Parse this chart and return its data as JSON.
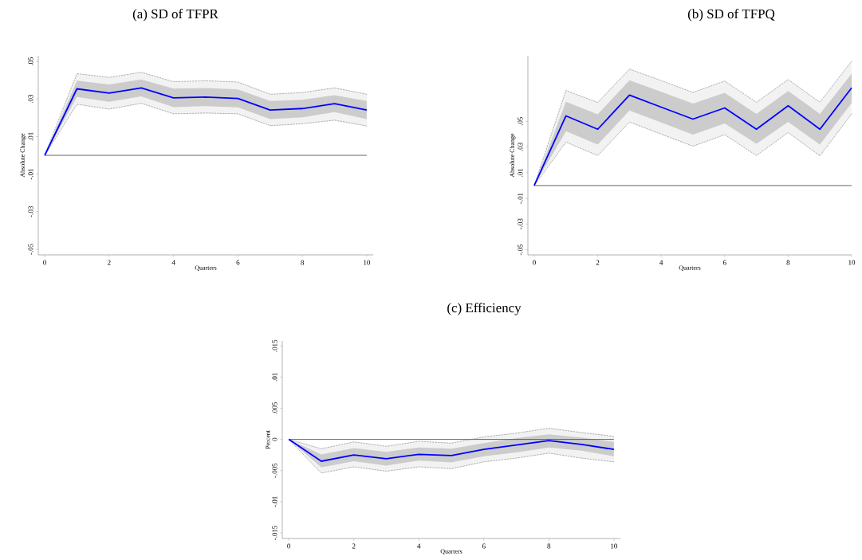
{
  "chart_data": [
    {
      "type": "line",
      "title": "(a) SD of TFPR",
      "xlabel": "Quarters",
      "ylabel": "Absolute Change",
      "x": [
        0,
        1,
        2,
        3,
        4,
        5,
        6,
        7,
        8,
        9,
        10
      ],
      "series": [
        {
          "color": "#0000ff",
          "values": [
            0,
            0.0354,
            0.0331,
            0.0359,
            0.0306,
            0.031,
            0.0303,
            0.0241,
            0.0249,
            0.0275,
            0.0241
          ],
          "lower": [
            0,
            0.0311,
            0.0285,
            0.0314,
            0.0257,
            0.0262,
            0.0255,
            0.0193,
            0.0202,
            0.023,
            0.0193
          ],
          "upper": [
            0,
            0.0397,
            0.0377,
            0.0404,
            0.0355,
            0.0358,
            0.0351,
            0.0289,
            0.0296,
            0.032,
            0.0289
          ]
        },
        {
          "color": "#808080",
          "line_style": "dashed",
          "values": [
            0,
            0.0435,
            0.0415,
            0.0442,
            0.0392,
            0.0397,
            0.039,
            0.0325,
            0.0334,
            0.0359,
            0.0325
          ],
          "lower": [
            0,
            0.0272,
            0.0246,
            0.0277,
            0.0221,
            0.0225,
            0.0221,
            0.0158,
            0.0168,
            0.0187,
            0.0156
          ],
          "upper": [
            0,
            0.0435,
            0.0415,
            0.0442,
            0.0392,
            0.0397,
            0.039,
            0.0325,
            0.0334,
            0.0359,
            0.0325
          ]
        },
        {
          "color": "#808080",
          "line_style": "dashed",
          "values": [
            0,
            0.0272,
            0.0246,
            0.0277,
            0.0221,
            0.0225,
            0.0221,
            0.0158,
            0.0168,
            0.0187,
            0.0156
          ]
        }
      ],
      "xlim": [
        -0.2,
        10.2
      ],
      "ylim": [
        -0.053,
        0.053
      ],
      "xticks": [
        0,
        2,
        4,
        6,
        8,
        10
      ],
      "yticks": [
        {
          "value": -0.05,
          "label": "-.05"
        },
        {
          "value": -0.03,
          "label": "-.03"
        },
        {
          "value": -0.01,
          "label": "-.01"
        },
        {
          "value": 0.01,
          "label": ".01"
        },
        {
          "value": 0.03,
          "label": ".03"
        },
        {
          "value": 0.05,
          "label": ".05"
        }
      ],
      "ref_lines": [
        {
          "axis": "y",
          "value": 0,
          "color": "#404040"
        }
      ]
    },
    {
      "type": "line",
      "title": "(b) SD of TFPQ",
      "xlabel": "Quarters",
      "ylabel": "Absolute Change",
      "x": [
        0,
        1,
        2,
        3,
        4,
        5,
        6,
        7,
        8,
        9,
        10
      ],
      "series": [
        {
          "color": "#0000ff",
          "values": [
            0,
            0.0542,
            0.0438,
            0.0704,
            0.061,
            0.0517,
            0.0604,
            0.0438,
            0.0621,
            0.0438,
            0.076
          ],
          "lower": [
            0,
            0.0423,
            0.0319,
            0.0583,
            0.049,
            0.0396,
            0.0483,
            0.0325,
            0.0496,
            0.0319,
            0.0642
          ],
          "upper": [
            0,
            0.0652,
            0.0554,
            0.0819,
            0.0729,
            0.0638,
            0.0721,
            0.0558,
            0.0735,
            0.0558,
            0.0871
          ]
        },
        {
          "color": "#808080",
          "line_style": "dashed",
          "values": [
            0,
            0.074,
            0.0646,
            0.0906,
            0.0817,
            0.0725,
            0.0813,
            0.0648,
            0.0825,
            0.0648,
            0.0969
          ],
          "lower": [
            0,
            0.0338,
            0.0233,
            0.0494,
            0.04,
            0.0306,
            0.0396,
            0.0233,
            0.0413,
            0.0231,
            0.0558
          ],
          "upper": [
            0,
            0.074,
            0.0646,
            0.0906,
            0.0817,
            0.0725,
            0.0813,
            0.0648,
            0.0825,
            0.0648,
            0.0969
          ]
        },
        {
          "color": "#808080",
          "line_style": "dashed",
          "values": [
            0,
            0.0338,
            0.0233,
            0.0494,
            0.04,
            0.0306,
            0.0396,
            0.0233,
            0.0413,
            0.0231,
            0.0558
          ]
        }
      ],
      "xlim": [
        -0.2,
        10
      ],
      "ylim": [
        -0.054,
        0.101
      ],
      "xticks": [
        0,
        2,
        4,
        6,
        8,
        10
      ],
      "yticks": [
        {
          "value": -0.05,
          "label": "-.05"
        },
        {
          "value": -0.03,
          "label": "-.03"
        },
        {
          "value": -0.01,
          "label": "-.01"
        },
        {
          "value": 0.01,
          "label": ".01"
        },
        {
          "value": 0.03,
          "label": ".03"
        },
        {
          "value": 0.05,
          "label": ".05"
        }
      ],
      "ref_lines": [
        {
          "axis": "y",
          "value": 0,
          "color": "#404040"
        }
      ]
    },
    {
      "type": "line",
      "title": "(c) Efficiency",
      "xlabel": "Quarters",
      "ylabel": "Percent",
      "x": [
        0,
        1,
        2,
        3,
        4,
        5,
        6,
        7,
        8,
        9,
        10
      ],
      "series": [
        {
          "color": "#0000ff",
          "values": [
            0,
            -0.0035,
            -0.0025,
            -0.0031,
            -0.0024,
            -0.0026,
            -0.0016,
            -0.0009,
            -0.0002,
            -0.0008,
            -0.0016
          ],
          "lower": [
            0,
            -0.0045,
            -0.0035,
            -0.0042,
            -0.0034,
            -0.0037,
            -0.0027,
            -0.0021,
            -0.0013,
            -0.0018,
            -0.0027
          ],
          "upper": [
            0,
            -0.0024,
            -0.0014,
            -0.002,
            -0.0013,
            -0.0015,
            -0.0006,
            0.0002,
            0.0008,
            0.0003,
            -0.0004
          ]
        },
        {
          "color": "#808080",
          "line_style": "dashed",
          "values": [
            0,
            -0.0015,
            -0.0004,
            -0.0011,
            -0.0003,
            -0.0006,
            0.0004,
            0.001,
            0.0018,
            0.0011,
            0.0005
          ],
          "lower": [
            0,
            -0.0054,
            -0.0044,
            -0.0051,
            -0.0044,
            -0.0047,
            -0.0036,
            -0.003,
            -0.0022,
            -0.003,
            -0.0036
          ],
          "upper": [
            0,
            -0.0015,
            -0.0004,
            -0.0011,
            -0.0003,
            -0.0006,
            0.0004,
            0.001,
            0.0018,
            0.0011,
            0.0005
          ]
        },
        {
          "color": "#808080",
          "line_style": "dashed",
          "values": [
            0,
            -0.0054,
            -0.0044,
            -0.0051,
            -0.0044,
            -0.0047,
            -0.0036,
            -0.003,
            -0.0022,
            -0.003,
            -0.0036
          ]
        }
      ],
      "xlim": [
        -0.2,
        10.2
      ],
      "ylim": [
        -0.0159,
        0.0158
      ],
      "xticks": [
        0,
        2,
        4,
        6,
        8,
        10
      ],
      "yticks": [
        {
          "value": -0.015,
          "label": "-.015"
        },
        {
          "value": -0.01,
          "label": "-.01"
        },
        {
          "value": -0.005,
          "label": "-.005"
        },
        {
          "value": 0,
          "label": "0"
        },
        {
          "value": 0.005,
          "label": ".005"
        },
        {
          "value": 0.01,
          "label": ".01"
        },
        {
          "value": 0.015,
          "label": ".015"
        }
      ],
      "ref_lines": [
        {
          "axis": "y",
          "value": 0,
          "color": "#404040"
        }
      ]
    }
  ]
}
